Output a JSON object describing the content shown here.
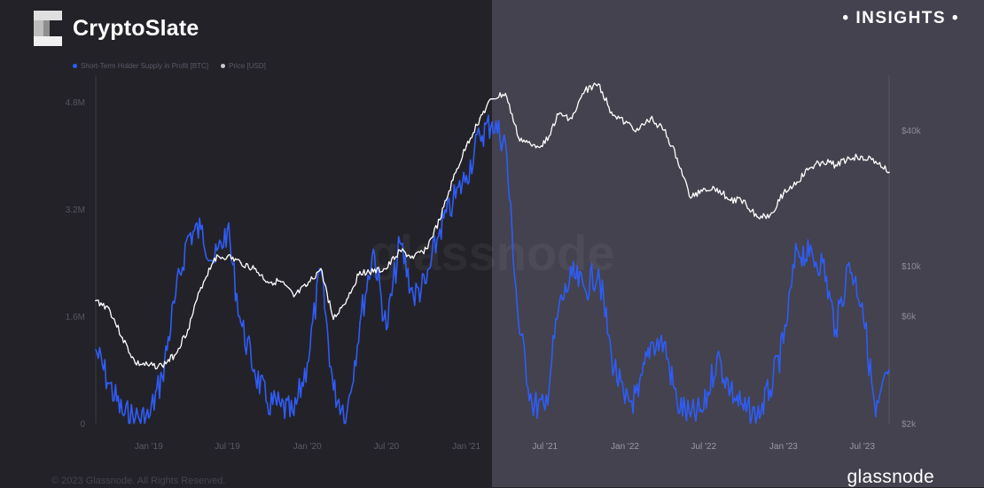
{
  "header": {
    "brand_name": "CryptoSlate",
    "insights_label": "• INSIGHTS •"
  },
  "footer": {
    "copyright": "© 2023 Glassnode. All Rights Reserved.",
    "logo_text": "glassnode"
  },
  "watermark": "glassnode",
  "colors": {
    "supply_series": "#2f5cf6",
    "price_series": "#ffffff",
    "left_panel": "#232228",
    "right_panel": "#43424e"
  },
  "chart_data": {
    "type": "line",
    "title": "",
    "legend": [
      "Short-Term Holder Supply in Profit [BTC]",
      "Price [USD]"
    ],
    "legend_placement": "top-left",
    "x_tick_labels": [
      "Jan '19",
      "Jul '19",
      "Jan '20",
      "Jul '20",
      "Jan '21",
      "Jul '21",
      "Jan '22",
      "Jul '22",
      "Jan '23",
      "Jul '23"
    ],
    "x_range": [
      "2018-09-01",
      "2023-09-01"
    ],
    "y_left": {
      "label": "",
      "ticks": [
        "0",
        "1.6M",
        "3.2M",
        "4.8M"
      ],
      "range": [
        0,
        5200000
      ],
      "scale": "linear"
    },
    "y_right": {
      "label": "",
      "ticks": [
        "$2k",
        "$6k",
        "$10k",
        "$40k"
      ],
      "range": [
        2000,
        70000
      ],
      "scale": "log"
    },
    "grid": false,
    "series": [
      {
        "name": "Short-Term Holder Supply in Profit [BTC]",
        "axis": "left",
        "x": [
          "2018-09-01",
          "2018-10-01",
          "2018-11-01",
          "2018-12-01",
          "2019-01-01",
          "2019-02-01",
          "2019-03-01",
          "2019-04-01",
          "2019-05-01",
          "2019-06-01",
          "2019-07-01",
          "2019-08-01",
          "2019-09-01",
          "2019-10-01",
          "2019-11-01",
          "2019-12-01",
          "2020-01-01",
          "2020-02-01",
          "2020-03-01",
          "2020-04-01",
          "2020-05-01",
          "2020-06-01",
          "2020-07-01",
          "2020-08-01",
          "2020-09-01",
          "2020-10-01",
          "2020-11-01",
          "2020-12-01",
          "2021-01-01",
          "2021-02-01",
          "2021-03-01",
          "2021-04-01",
          "2021-05-01",
          "2021-06-01",
          "2021-07-01",
          "2021-08-01",
          "2021-09-01",
          "2021-10-01",
          "2021-11-01",
          "2021-12-01",
          "2022-01-01",
          "2022-02-01",
          "2022-03-01",
          "2022-04-01",
          "2022-05-01",
          "2022-06-01",
          "2022-07-01",
          "2022-08-01",
          "2022-09-01",
          "2022-10-01",
          "2022-11-01",
          "2022-12-01",
          "2023-01-01",
          "2023-02-01",
          "2023-03-01",
          "2023-04-01",
          "2023-05-01",
          "2023-06-01",
          "2023-07-01",
          "2023-08-01",
          "2023-09-01"
        ],
        "values": [
          1100000,
          600000,
          150000,
          80000,
          80000,
          700000,
          1800000,
          2800000,
          2900000,
          2400000,
          2900000,
          1500000,
          800000,
          300000,
          250000,
          120000,
          900000,
          2300000,
          500000,
          150000,
          1500000,
          2600000,
          1400000,
          2700000,
          1900000,
          2100000,
          2900000,
          3300000,
          3700000,
          4300000,
          4500000,
          4200000,
          1500000,
          300000,
          200000,
          1700000,
          2200000,
          2000000,
          2300000,
          1000000,
          300000,
          400000,
          1200000,
          1200000,
          300000,
          100000,
          200000,
          1000000,
          500000,
          200000,
          100000,
          500000,
          1200000,
          2600000,
          2500000,
          2400000,
          1400000,
          2400000,
          1800000,
          100000,
          800000
        ]
      },
      {
        "name": "Price [USD]",
        "axis": "right",
        "x": [
          "2018-09-01",
          "2018-10-01",
          "2018-11-01",
          "2018-12-01",
          "2019-01-01",
          "2019-02-01",
          "2019-03-01",
          "2019-04-01",
          "2019-05-01",
          "2019-06-01",
          "2019-07-01",
          "2019-08-01",
          "2019-09-01",
          "2019-10-01",
          "2019-11-01",
          "2019-12-01",
          "2020-01-01",
          "2020-02-01",
          "2020-03-01",
          "2020-04-01",
          "2020-05-01",
          "2020-06-01",
          "2020-07-01",
          "2020-08-01",
          "2020-09-01",
          "2020-10-01",
          "2020-11-01",
          "2020-12-01",
          "2021-01-01",
          "2021-02-01",
          "2021-03-01",
          "2021-04-01",
          "2021-05-01",
          "2021-06-01",
          "2021-07-01",
          "2021-08-01",
          "2021-09-01",
          "2021-10-01",
          "2021-11-01",
          "2021-12-01",
          "2022-01-01",
          "2022-02-01",
          "2022-03-01",
          "2022-04-01",
          "2022-05-01",
          "2022-06-01",
          "2022-07-01",
          "2022-08-01",
          "2022-09-01",
          "2022-10-01",
          "2022-11-01",
          "2022-12-01",
          "2023-01-01",
          "2023-02-01",
          "2023-03-01",
          "2023-04-01",
          "2023-05-01",
          "2023-06-01",
          "2023-07-01",
          "2023-08-01",
          "2023-09-01"
        ],
        "values": [
          7000,
          6500,
          4800,
          3700,
          3600,
          3600,
          4000,
          5200,
          8000,
          10800,
          11000,
          10300,
          9700,
          8500,
          8500,
          7300,
          8200,
          9700,
          5800,
          7100,
          9400,
          9400,
          9700,
          11700,
          10800,
          11900,
          16000,
          24000,
          34000,
          45000,
          55000,
          58000,
          37000,
          34000,
          35000,
          47000,
          45000,
          60000,
          64000,
          48000,
          43000,
          40000,
          45000,
          40000,
          30000,
          20000,
          22000,
          22000,
          19500,
          19500,
          16500,
          16800,
          21000,
          23500,
          27000,
          29000,
          28000,
          30000,
          30500,
          29000,
          26000
        ]
      }
    ]
  }
}
